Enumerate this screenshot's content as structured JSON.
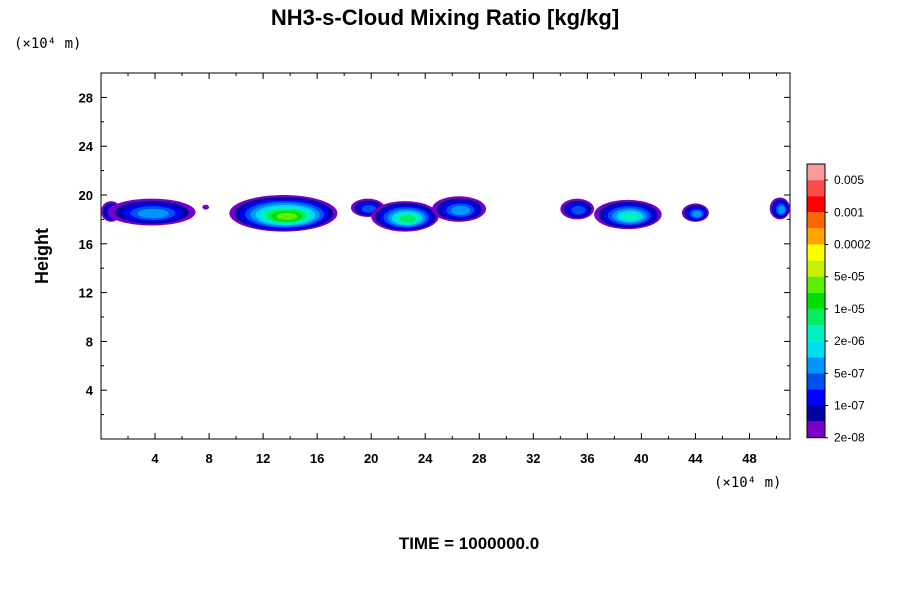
{
  "chart_data": {
    "type": "heatmap",
    "title": "NH3-s-Cloud Mixing Ratio [kg/kg]",
    "ylabel": "Height",
    "y_unit_label": "(×10⁴ m)",
    "x_unit_label": "(×10⁴ m)",
    "footer": "TIME = 1000000.0",
    "xlim": [
      0,
      51
    ],
    "ylim": [
      0,
      30
    ],
    "x_ticks": [
      4,
      8,
      12,
      16,
      20,
      24,
      28,
      32,
      36,
      40,
      44,
      48
    ],
    "y_ticks": [
      4,
      8,
      12,
      16,
      20,
      24,
      28
    ],
    "x_tick_labels": [
      "4",
      "8",
      "12",
      "16",
      "20",
      "24",
      "28",
      "32",
      "36",
      "40",
      "44",
      "48"
    ],
    "y_tick_labels": [
      "4",
      "8",
      "12",
      "16",
      "20",
      "24",
      "28"
    ],
    "colorbar": {
      "labels": [
        "0.005",
        "0.001",
        "0.0002",
        "5e-05",
        "1e-05",
        "2e-06",
        "5e-07",
        "1e-07",
        "2e-08"
      ],
      "colors": [
        "#fa9b9b",
        "#fa4a4a",
        "#ff0000",
        "#ff6600",
        "#ffa500",
        "#ffff00",
        "#c8f000",
        "#5af000",
        "#00e000",
        "#00ee60",
        "#00f0c0",
        "#00dcf0",
        "#0096ff",
        "#0050f0",
        "#0000ff",
        "#0000a0",
        "#7800c8"
      ]
    },
    "cloud_features": [
      {
        "x_start": 0.0,
        "x_end": 1.5,
        "y_bottom": 17.8,
        "y_top": 19.5,
        "level": 0.3
      },
      {
        "x_start": 0.5,
        "x_end": 7.0,
        "y_bottom": 17.5,
        "y_top": 19.7,
        "level": 0.45
      },
      {
        "x_start": 7.5,
        "x_end": 8.0,
        "y_bottom": 18.8,
        "y_top": 19.2,
        "level": 0.1
      },
      {
        "x_start": 9.5,
        "x_end": 17.5,
        "y_bottom": 17.0,
        "y_top": 20.0,
        "level": 0.85
      },
      {
        "x_start": 18.5,
        "x_end": 21.0,
        "y_bottom": 18.2,
        "y_top": 19.7,
        "level": 0.35
      },
      {
        "x_start": 20.0,
        "x_end": 25.0,
        "y_bottom": 17.0,
        "y_top": 19.5,
        "level": 0.65
      },
      {
        "x_start": 24.5,
        "x_end": 28.5,
        "y_bottom": 17.8,
        "y_top": 19.9,
        "level": 0.45
      },
      {
        "x_start": 34.0,
        "x_end": 36.5,
        "y_bottom": 18.0,
        "y_top": 19.7,
        "level": 0.3
      },
      {
        "x_start": 36.5,
        "x_end": 41.5,
        "y_bottom": 17.2,
        "y_top": 19.6,
        "level": 0.55
      },
      {
        "x_start": 43.0,
        "x_end": 45.0,
        "y_bottom": 17.8,
        "y_top": 19.3,
        "level": 0.45
      },
      {
        "x_start": 49.5,
        "x_end": 51.0,
        "y_bottom": 18.0,
        "y_top": 19.8,
        "level": 0.45
      }
    ]
  }
}
